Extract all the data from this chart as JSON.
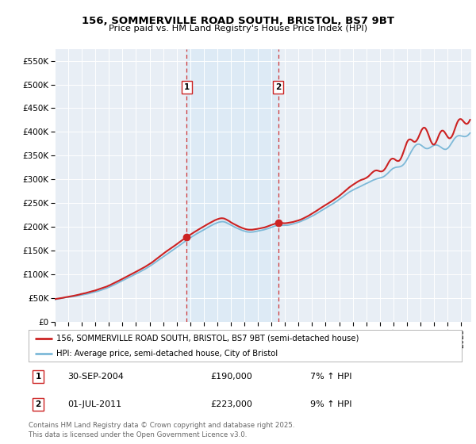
{
  "title": "156, SOMMERVILLE ROAD SOUTH, BRISTOL, BS7 9BT",
  "subtitle": "Price paid vs. HM Land Registry's House Price Index (HPI)",
  "legend_line1": "156, SOMMERVILLE ROAD SOUTH, BRISTOL, BS7 9BT (semi-detached house)",
  "legend_line2": "HPI: Average price, semi-detached house, City of Bristol",
  "sale1_date": "30-SEP-2004",
  "sale1_price": 190000,
  "sale1_label": "7% ↑ HPI",
  "sale1_year": 2004.75,
  "sale2_date": "01-JUL-2011",
  "sale2_price": 223000,
  "sale2_label": "9% ↑ HPI",
  "sale2_year": 2011.5,
  "footnote": "Contains HM Land Registry data © Crown copyright and database right 2025.\nThis data is licensed under the Open Government Licence v3.0.",
  "hpi_color": "#7db9d8",
  "price_color": "#cc2222",
  "sale_vline_color": "#cc2222",
  "shade_color": "#ddeaf5",
  "background_color": "#e8eef5",
  "ylim": [
    0,
    575000
  ],
  "ytick_vals": [
    0,
    50000,
    100000,
    150000,
    200000,
    250000,
    300000,
    350000,
    400000,
    450000,
    500000,
    550000
  ],
  "ytick_labels": [
    "£0",
    "£50K",
    "£100K",
    "£150K",
    "£200K",
    "£250K",
    "£300K",
    "£350K",
    "£400K",
    "£450K",
    "£500K",
    "£550K"
  ],
  "xlim_start": 1995.0,
  "xlim_end": 2025.75
}
